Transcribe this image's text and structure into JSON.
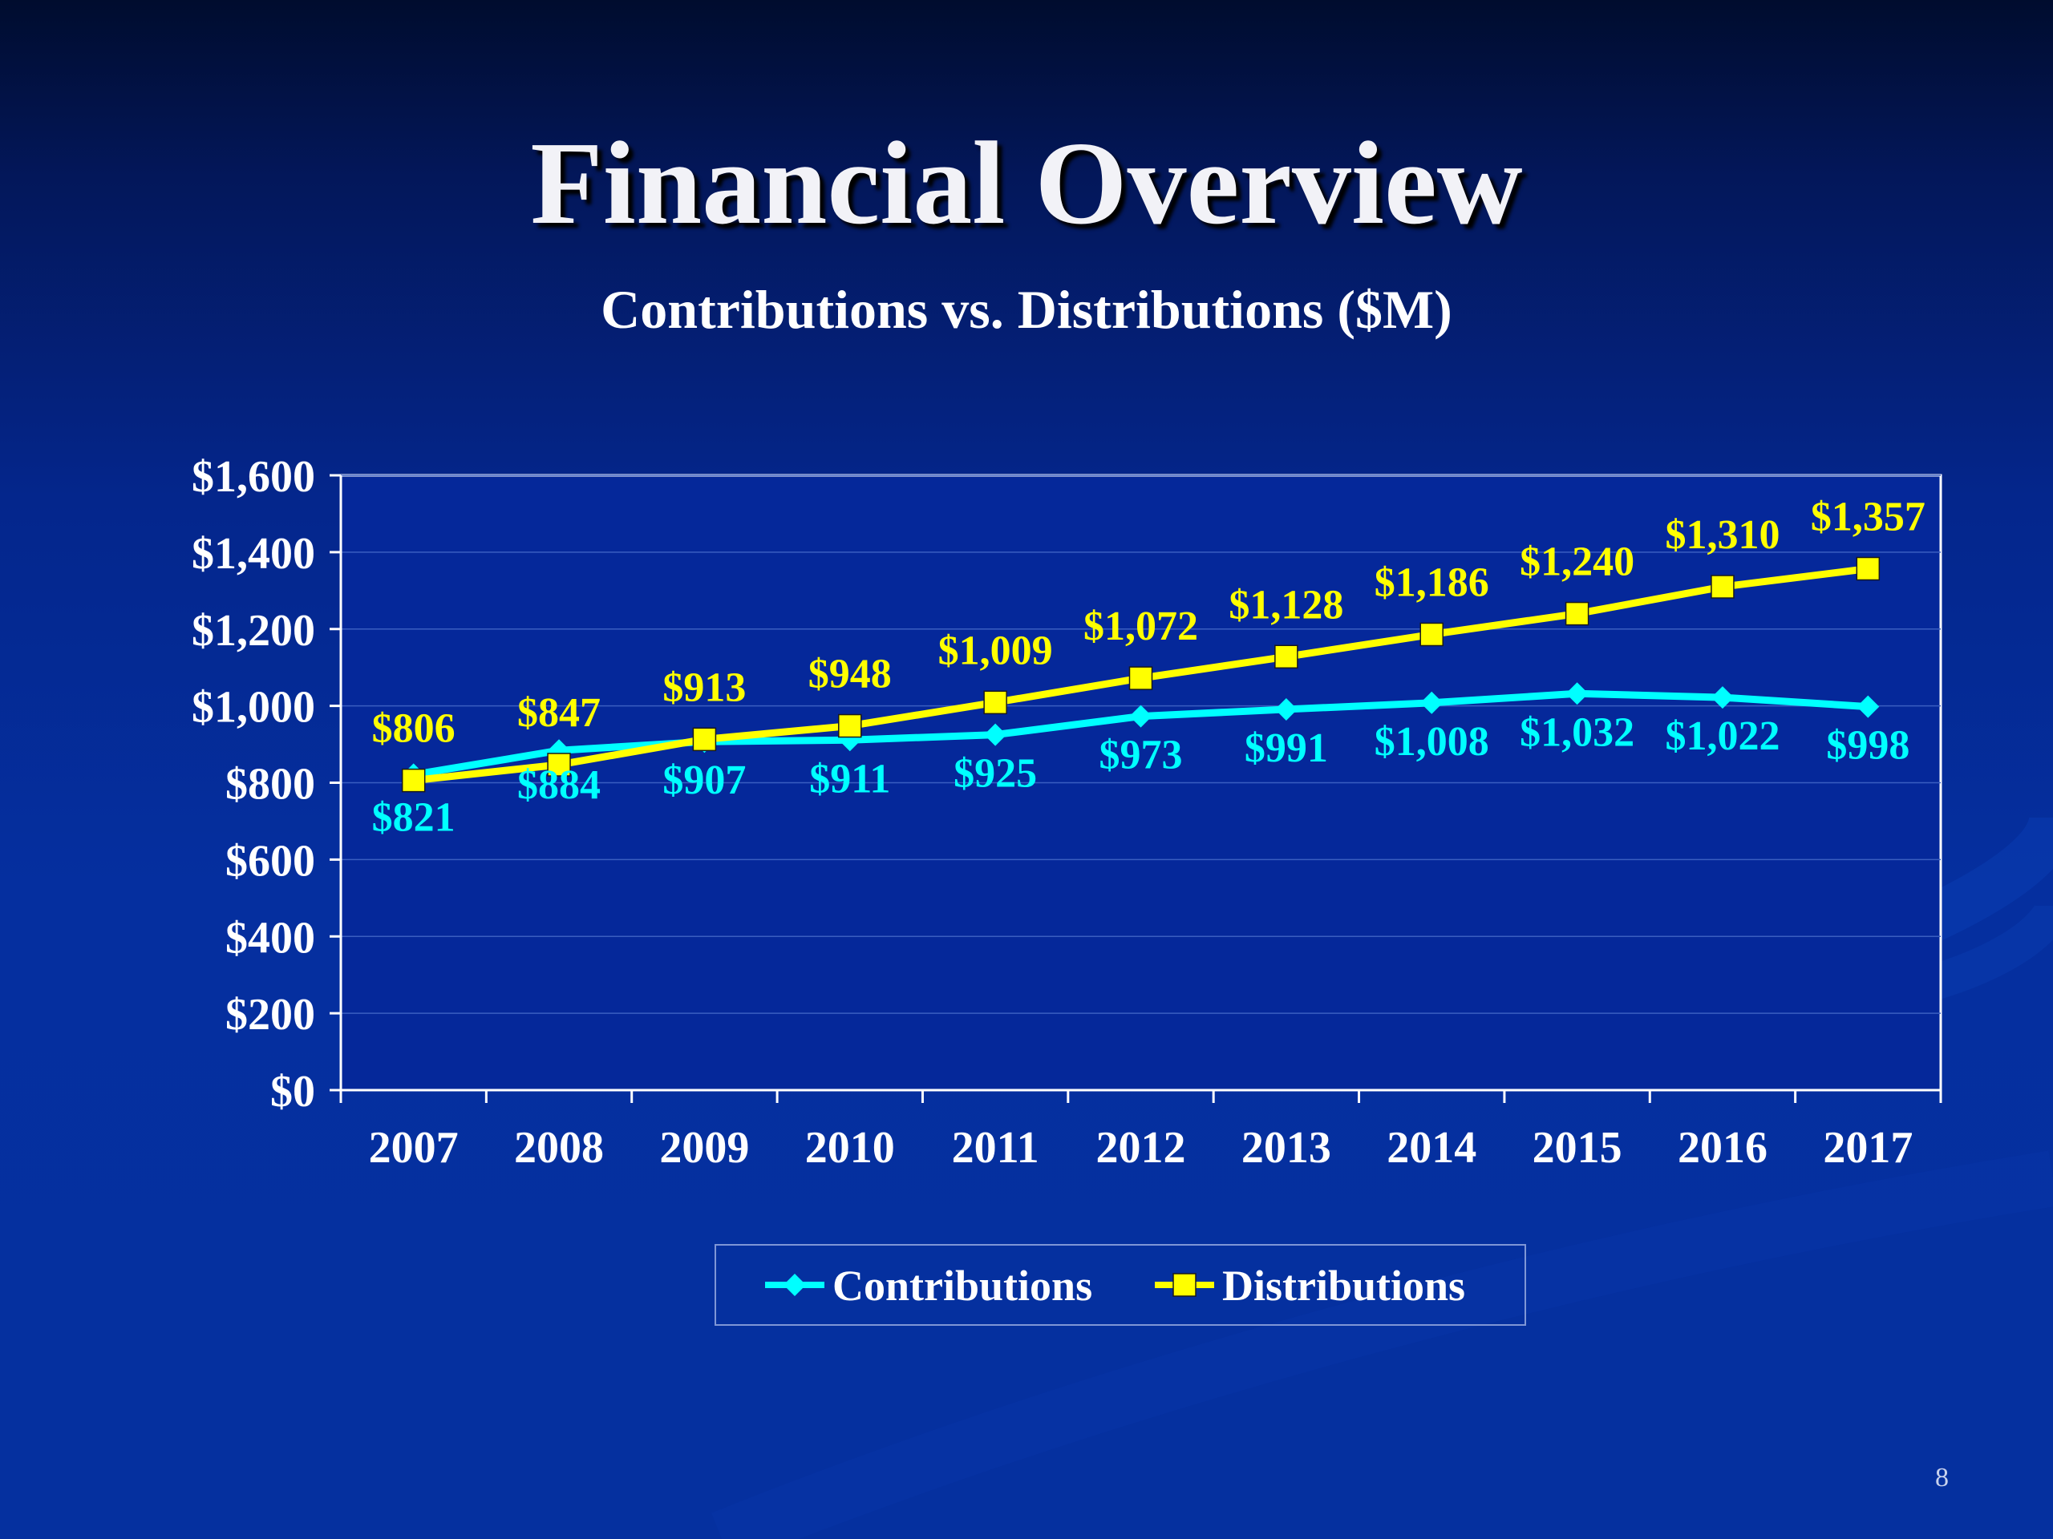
{
  "slide": {
    "title": "Financial Overview",
    "page_number": "8"
  },
  "colors": {
    "contributions": "#00ffff",
    "distributions": "#ffff00",
    "axis_text": "#ffffff",
    "plot_background": "#05289a",
    "plot_border": "#ffffff",
    "legend_text": "#ffffff"
  },
  "chart_data": {
    "type": "line",
    "title": "Contributions vs. Distributions ($M)",
    "categories": [
      "2007",
      "2008",
      "2009",
      "2010",
      "2011",
      "2012",
      "2013",
      "2014",
      "2015",
      "2016",
      "2017"
    ],
    "series": [
      {
        "name": "Contributions",
        "marker": "diamond",
        "values": [
          821,
          884,
          907,
          911,
          925,
          973,
          991,
          1008,
          1032,
          1022,
          998
        ],
        "labels": [
          "$821",
          "$884",
          "$907",
          "$911",
          "$925",
          "$973",
          "$991",
          "$1,008",
          "$1,032",
          "$1,022",
          "$998"
        ]
      },
      {
        "name": "Distributions",
        "marker": "square",
        "values": [
          806,
          847,
          913,
          948,
          1009,
          1072,
          1128,
          1186,
          1240,
          1310,
          1357
        ],
        "labels": [
          "$806",
          "$847",
          "$913",
          "$948",
          "$1,009",
          "$1,072",
          "$1,128",
          "$1,186",
          "$1,240",
          "$1,310",
          "$1,357"
        ]
      }
    ],
    "ylim": [
      0,
      1600
    ],
    "yticks": [
      0,
      200,
      400,
      600,
      800,
      1000,
      1200,
      1400,
      1600
    ],
    "ytick_labels": [
      "$0",
      "$200",
      "$400",
      "$600",
      "$800",
      "$1,000",
      "$1,200",
      "$1,400",
      "$1,600"
    ],
    "grid": true,
    "legend_position": "bottom"
  }
}
